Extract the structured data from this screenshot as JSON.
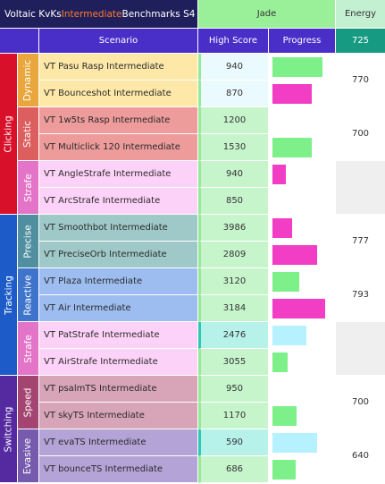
{
  "header": {
    "title_pre": "Voltaic KvKs ",
    "title_mid": "Intermediate",
    "title_post": " Benchmarks S4",
    "rank": "Jade",
    "energy_label": "Energy",
    "columns": {
      "scenario": "Scenario",
      "high_score": "High Score",
      "progress": "Progress"
    },
    "energy_total": "725"
  },
  "colors": {
    "title_bg": "#1f1f5c",
    "accent_orange": "#ff7a2a",
    "jade_bg": "#99f099",
    "energy_bg": "#c4f0d2",
    "header_bg": "#4a2ec8",
    "energy_total_bg": "#169b82",
    "bar_green": "#7ef08a",
    "bar_magenta": "#f23ec5",
    "bar_cyan": "#b6f1ff"
  },
  "categories": [
    {
      "name": "Clicking",
      "color": "#d8102a",
      "start": 0,
      "span": 6
    },
    {
      "name": "Tracking",
      "color": "#1d5cc8",
      "start": 6,
      "span": 6
    },
    {
      "name": "Switching",
      "color": "#552aa0",
      "start": 12,
      "span": 4
    }
  ],
  "subcategories": [
    {
      "name": "Dynamic",
      "color": "#e9a63c",
      "start": 0,
      "span": 2
    },
    {
      "name": "Static",
      "color": "#dc5e5e",
      "start": 2,
      "span": 2
    },
    {
      "name": "Strafe",
      "color": "#e474c8",
      "start": 4,
      "span": 2
    },
    {
      "name": "Precise",
      "color": "#4f8fa0",
      "start": 6,
      "span": 2
    },
    {
      "name": "Reactive",
      "color": "#3e74cc",
      "start": 8,
      "span": 2
    },
    {
      "name": "Strafe",
      "color": "#e474c8",
      "start": 10,
      "span": 2
    },
    {
      "name": "Speed",
      "color": "#a44470",
      "start": 12,
      "span": 2
    },
    {
      "name": "Evasive",
      "color": "#765aae",
      "start": 14,
      "span": 2
    }
  ],
  "energy_groups": [
    {
      "value": "770",
      "start": 0,
      "span": 2
    },
    {
      "value": "700",
      "start": 2,
      "span": 2
    },
    {
      "value": "",
      "start": 4,
      "span": 2
    },
    {
      "value": "777",
      "start": 6,
      "span": 2
    },
    {
      "value": "793",
      "start": 8,
      "span": 2
    },
    {
      "value": "",
      "start": 10,
      "span": 2
    },
    {
      "value": "700",
      "start": 12,
      "span": 2
    },
    {
      "value": "640",
      "start": 14,
      "span": 2
    }
  ],
  "scenarios": [
    {
      "name": "VT Pasu Rasp Intermediate",
      "score": "940",
      "bg": "#fde8a8",
      "score_bg": "#eafaff",
      "marker": "#97e897",
      "progress": 0.83,
      "bar": "green"
    },
    {
      "name": "VT Bounceshot Intermediate",
      "score": "870",
      "bg": "#fde8a8",
      "score_bg": "#eafaff",
      "marker": "#97e897",
      "progress": 0.66,
      "bar": "magenta"
    },
    {
      "name": "VT 1w5ts Rasp Intermediate",
      "score": "1200",
      "bg": "#ee9b9b",
      "score_bg": "#c6f5cc",
      "marker": "#97e897",
      "progress": 0,
      "bar": "green"
    },
    {
      "name": "VT Multiclick 120 Intermediate",
      "score": "1530",
      "bg": "#ee9b9b",
      "score_bg": "#c6f5cc",
      "marker": "#97e897",
      "progress": 0.66,
      "bar": "green"
    },
    {
      "name": "VT AngleStrafe Intermediate",
      "score": "940",
      "bg": "#fdd2f8",
      "score_bg": "#c6f5cc",
      "marker": "#97e897",
      "progress": 0.23,
      "bar": "magenta"
    },
    {
      "name": "VT ArcStrafe Intermediate",
      "score": "850",
      "bg": "#fdd2f8",
      "score_bg": "#c6f5cc",
      "marker": "#97e897",
      "progress": 0,
      "bar": "green"
    },
    {
      "name": "VT Smoothbot Intermediate",
      "score": "3986",
      "bg": "#9fc9c8",
      "score_bg": "#c6f5cc",
      "marker": "#97e897",
      "progress": 0.33,
      "bar": "magenta"
    },
    {
      "name": "VT PreciseOrb Intermediate",
      "score": "2809",
      "bg": "#9fc9c8",
      "score_bg": "#c6f5cc",
      "marker": "#97e897",
      "progress": 0.75,
      "bar": "magenta"
    },
    {
      "name": "VT Plaza Intermediate",
      "score": "3120",
      "bg": "#9dbdf0",
      "score_bg": "#c6f5cc",
      "marker": "#97e897",
      "progress": 0.45,
      "bar": "green"
    },
    {
      "name": "VT Air Intermediate",
      "score": "3184",
      "bg": "#9dbdf0",
      "score_bg": "#c6f5cc",
      "marker": "#97e897",
      "progress": 0.88,
      "bar": "magenta"
    },
    {
      "name": "VT PatStrafe Intermediate",
      "score": "2476",
      "bg": "#fdd2f8",
      "score_bg": "#b6f1ea",
      "marker": "#2fc7b4",
      "progress": 0.56,
      "bar": "cyan"
    },
    {
      "name": "VT AirStrafe Intermediate",
      "score": "3055",
      "bg": "#fdd2f8",
      "score_bg": "#c6f5cc",
      "marker": "#97e897",
      "progress": 0.26,
      "bar": "green"
    },
    {
      "name": "VT psalmTS Intermediate",
      "score": "950",
      "bg": "#d8a4b8",
      "score_bg": "#c6f5cc",
      "marker": "#97e897",
      "progress": 0,
      "bar": "green"
    },
    {
      "name": "VT skyTS Intermediate",
      "score": "1170",
      "bg": "#d8a4b8",
      "score_bg": "#c6f5cc",
      "marker": "#97e897",
      "progress": 0.41,
      "bar": "green"
    },
    {
      "name": "VT evaTS Intermediate",
      "score": "590",
      "bg": "#b3a3d6",
      "score_bg": "#b6f1ea",
      "marker": "#2fc7b4",
      "progress": 0.74,
      "bar": "cyan"
    },
    {
      "name": "VT bounceTS Intermediate",
      "score": "686",
      "bg": "#b3a3d6",
      "score_bg": "#c6f5cc",
      "marker": "#97e897",
      "progress": 0.39,
      "bar": "green"
    }
  ]
}
